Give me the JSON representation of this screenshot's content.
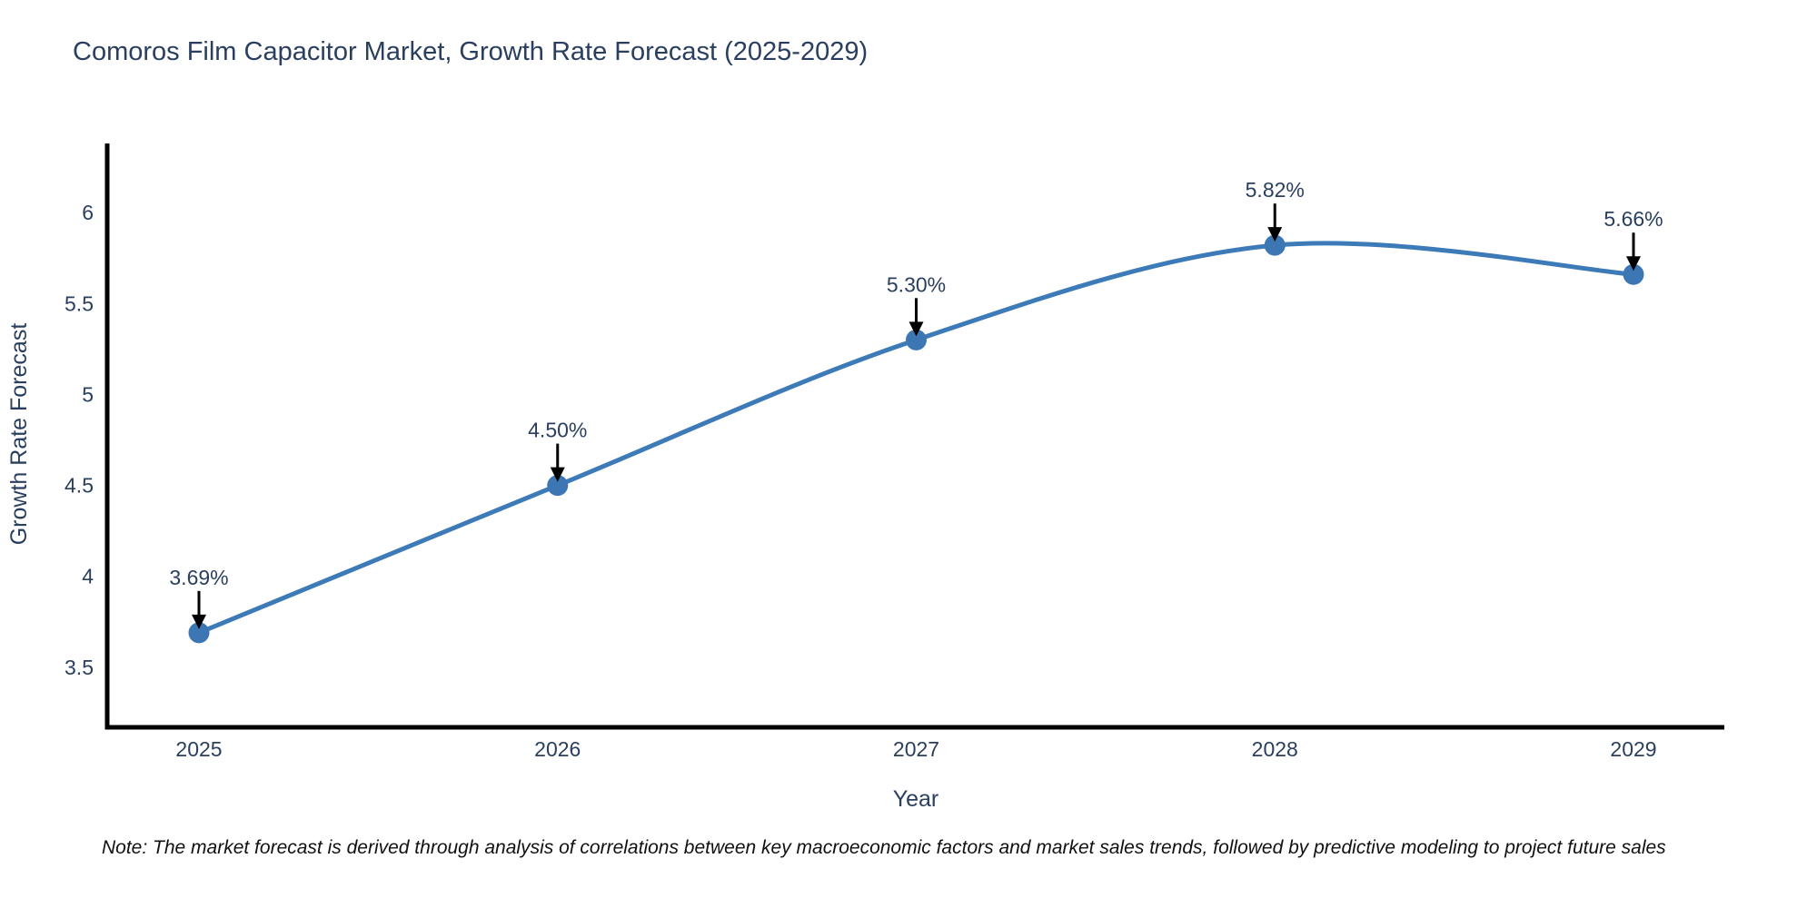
{
  "chart_data": {
    "type": "line",
    "title": "Comoros Film Capacitor Market, Growth Rate Forecast (2025-2029)",
    "xlabel": "Year",
    "ylabel": "Growth Rate Forecast",
    "categories": [
      "2025",
      "2026",
      "2027",
      "2028",
      "2029"
    ],
    "values": [
      3.69,
      4.5,
      5.3,
      5.82,
      5.66
    ],
    "point_labels": [
      "3.69%",
      "4.50%",
      "5.30%",
      "5.82%",
      "5.66%"
    ],
    "yticks": [
      3.5,
      4,
      4.5,
      5,
      5.5,
      6
    ],
    "ylim": [
      3.17,
      6.38
    ],
    "grid": false,
    "legend": false,
    "smooth": true,
    "note": "Note: The market forecast is derived through analysis of correlations between key macroeconomic factors and market sales trends, followed by predictive modeling to project future sales",
    "colors": {
      "line": "#3d7ab8",
      "marker": "#3c77b3",
      "axis": "#000000",
      "text": "#2a3f5f",
      "annotation_text": "#2a3f5f",
      "arrow": "#000000",
      "note_text": "#111111",
      "background": "#ffffff"
    }
  }
}
